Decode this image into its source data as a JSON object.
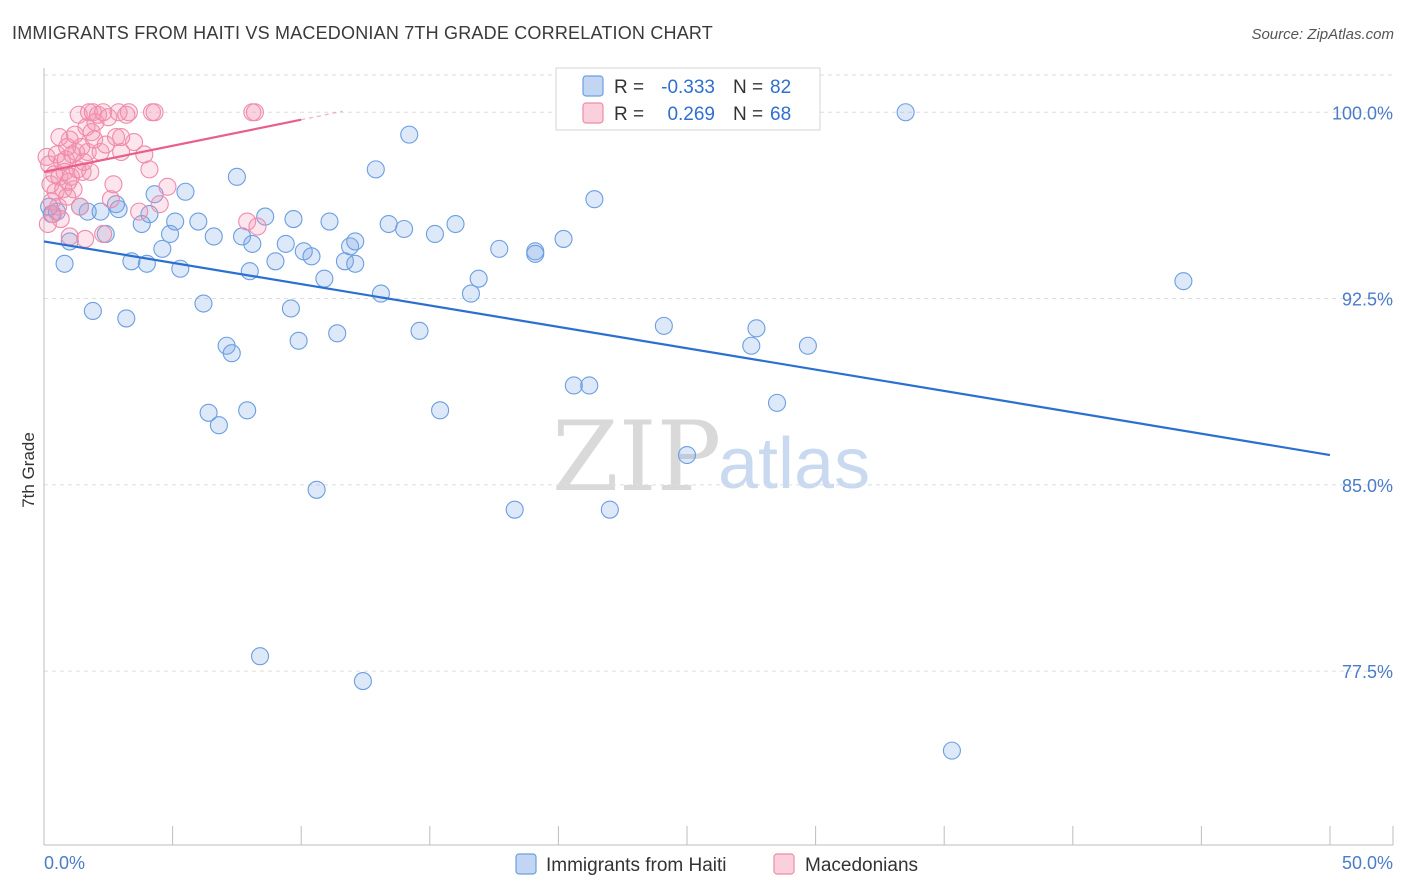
{
  "title": "IMMIGRANTS FROM HAITI VS MACEDONIAN 7TH GRADE CORRELATION CHART",
  "source": "Source: ZipAtlas.com",
  "watermark": {
    "zip": "ZIP",
    "atlas": "atlas"
  },
  "colors": {
    "haiti": "#6b9fe0",
    "haiti_fill": "rgba(120,165,230,0.25)",
    "haiti_line": "#2b6fd1",
    "macedonian": "#f08bab",
    "macedonian_fill": "rgba(245,150,180,0.25)",
    "macedonian_line": "#e8608a",
    "grid": "#dedede",
    "axis_text": "#4a7cc9"
  },
  "legend": {
    "row1": {
      "r_label": "R =",
      "r_value": "-0.333",
      "n_label": "N =",
      "n_value": "82"
    },
    "row2": {
      "r_label": "R =",
      "r_value": "0.269",
      "n_label": "N =",
      "n_value": "68"
    }
  },
  "bottom_legend": {
    "haiti": "Immigrants from Haiti",
    "macedonian": "Macedonians"
  },
  "chart_data": {
    "type": "scatter",
    "title": "IMMIGRANTS FROM HAITI VS MACEDONIAN 7TH GRADE CORRELATION CHART",
    "xlabel": "",
    "ylabel": "7th Grade",
    "xlim": [
      0,
      50
    ],
    "ylim": [
      70.5,
      101.5
    ],
    "x_tick_labels": [
      "0.0%",
      "50.0%"
    ],
    "y_ticks": [
      77.5,
      85.0,
      92.5,
      100.0
    ],
    "y_tick_labels": [
      "77.5%",
      "85.0%",
      "92.5%",
      "100.0%"
    ],
    "grid": true,
    "legend": "top-center",
    "series": [
      {
        "name": "Immigrants from Haiti",
        "R": -0.333,
        "N": 82,
        "trend": {
          "x": [
            0,
            50
          ],
          "y": [
            94.8,
            86.2
          ]
        },
        "points": [
          [
            0.2,
            96.2
          ],
          [
            0.5,
            96.0
          ],
          [
            0.8,
            93.9
          ],
          [
            1.0,
            94.8
          ],
          [
            1.4,
            96.2
          ],
          [
            1.7,
            96.0
          ],
          [
            1.9,
            92.0
          ],
          [
            2.2,
            96.0
          ],
          [
            2.4,
            95.1
          ],
          [
            2.8,
            96.3
          ],
          [
            3.2,
            91.7
          ],
          [
            3.4,
            94.0
          ],
          [
            3.8,
            95.5
          ],
          [
            4.1,
            95.9
          ],
          [
            4.3,
            96.7
          ],
          [
            4.6,
            94.5
          ],
          [
            4.9,
            95.1
          ],
          [
            5.1,
            95.6
          ],
          [
            5.3,
            93.7
          ],
          [
            5.5,
            96.8
          ],
          [
            6.0,
            95.6
          ],
          [
            6.2,
            92.3
          ],
          [
            6.4,
            87.9
          ],
          [
            6.6,
            95.0
          ],
          [
            6.8,
            87.4
          ],
          [
            7.1,
            90.6
          ],
          [
            7.3,
            90.3
          ],
          [
            7.5,
            97.4
          ],
          [
            7.7,
            95.0
          ],
          [
            7.9,
            88.0
          ],
          [
            8.1,
            94.7
          ],
          [
            8.4,
            78.1
          ],
          [
            8.6,
            95.8
          ],
          [
            9.0,
            94.0
          ],
          [
            9.4,
            94.7
          ],
          [
            9.6,
            92.1
          ],
          [
            9.7,
            95.7
          ],
          [
            9.9,
            90.8
          ],
          [
            10.1,
            94.4
          ],
          [
            10.4,
            94.2
          ],
          [
            10.6,
            84.8
          ],
          [
            10.9,
            93.3
          ],
          [
            11.1,
            95.6
          ],
          [
            11.4,
            91.1
          ],
          [
            11.7,
            94.0
          ],
          [
            11.9,
            94.6
          ],
          [
            12.1,
            94.8
          ],
          [
            12.4,
            77.1
          ],
          [
            12.9,
            97.7
          ],
          [
            13.1,
            92.7
          ],
          [
            13.4,
            95.5
          ],
          [
            14.0,
            95.3
          ],
          [
            14.2,
            99.1
          ],
          [
            14.6,
            91.2
          ],
          [
            15.2,
            95.1
          ],
          [
            15.4,
            88.0
          ],
          [
            16.0,
            95.5
          ],
          [
            16.6,
            92.7
          ],
          [
            16.9,
            93.3
          ],
          [
            17.7,
            94.5
          ],
          [
            18.3,
            84.0
          ],
          [
            19.1,
            94.4
          ],
          [
            20.2,
            94.9
          ],
          [
            20.6,
            89.0
          ],
          [
            21.2,
            89.0
          ],
          [
            21.4,
            96.5
          ],
          [
            22.0,
            84.0
          ],
          [
            24.1,
            91.4
          ],
          [
            25.0,
            86.2
          ],
          [
            27.5,
            90.6
          ],
          [
            27.7,
            91.3
          ],
          [
            28.5,
            88.3
          ],
          [
            29.7,
            90.6
          ],
          [
            33.5,
            100.0
          ],
          [
            35.3,
            74.3
          ],
          [
            44.3,
            93.2
          ],
          [
            19.1,
            94.3
          ],
          [
            12.1,
            93.9
          ],
          [
            8.0,
            93.6
          ],
          [
            4.0,
            93.9
          ],
          [
            2.9,
            96.1
          ],
          [
            0.3,
            95.9
          ]
        ]
      },
      {
        "name": "Macedonians",
        "R": 0.269,
        "N": 68,
        "trend": {
          "x": [
            0,
            10
          ],
          "y": [
            97.6,
            99.7
          ]
        },
        "points": [
          [
            0.1,
            98.2
          ],
          [
            0.2,
            97.9
          ],
          [
            0.25,
            97.1
          ],
          [
            0.3,
            96.4
          ],
          [
            0.35,
            95.9
          ],
          [
            0.4,
            97.5
          ],
          [
            0.45,
            96.8
          ],
          [
            0.5,
            98.3
          ],
          [
            0.55,
            96.2
          ],
          [
            0.6,
            97.4
          ],
          [
            0.65,
            95.7
          ],
          [
            0.7,
            98.0
          ],
          [
            0.75,
            96.9
          ],
          [
            0.8,
            97.6
          ],
          [
            0.85,
            98.1
          ],
          [
            0.9,
            96.6
          ],
          [
            0.95,
            97.2
          ],
          [
            1.0,
            98.9
          ],
          [
            1.05,
            97.4
          ],
          [
            1.1,
            98.3
          ],
          [
            1.15,
            96.9
          ],
          [
            1.2,
            99.1
          ],
          [
            1.25,
            98.4
          ],
          [
            1.3,
            97.7
          ],
          [
            1.35,
            99.9
          ],
          [
            1.4,
            96.2
          ],
          [
            1.45,
            98.6
          ],
          [
            1.5,
            97.6
          ],
          [
            1.55,
            98.0
          ],
          [
            1.6,
            94.9
          ],
          [
            1.65,
            99.4
          ],
          [
            1.7,
            98.4
          ],
          [
            1.75,
            100.0
          ],
          [
            1.8,
            97.6
          ],
          [
            1.85,
            99.2
          ],
          [
            1.9,
            100.0
          ],
          [
            1.95,
            98.9
          ],
          [
            2.0,
            99.6
          ],
          [
            2.1,
            99.9
          ],
          [
            2.2,
            98.4
          ],
          [
            2.3,
            100.0
          ],
          [
            2.4,
            98.7
          ],
          [
            2.5,
            99.8
          ],
          [
            2.6,
            96.5
          ],
          [
            2.7,
            97.1
          ],
          [
            2.8,
            99.0
          ],
          [
            2.9,
            100.0
          ],
          [
            3.0,
            98.4
          ],
          [
            3.2,
            99.9
          ],
          [
            3.3,
            100.0
          ],
          [
            3.5,
            98.8
          ],
          [
            3.7,
            96.0
          ],
          [
            3.9,
            98.3
          ],
          [
            4.1,
            97.7
          ],
          [
            4.2,
            100.0
          ],
          [
            4.3,
            100.0
          ],
          [
            4.5,
            96.3
          ],
          [
            4.8,
            97.0
          ],
          [
            7.9,
            95.6
          ],
          [
            8.1,
            100.0
          ],
          [
            8.2,
            100.0
          ],
          [
            8.3,
            95.4
          ],
          [
            0.15,
            95.5
          ],
          [
            0.6,
            99.0
          ],
          [
            1.0,
            95.0
          ],
          [
            2.3,
            95.1
          ],
          [
            3.0,
            99.0
          ],
          [
            0.9,
            98.6
          ]
        ]
      }
    ]
  }
}
